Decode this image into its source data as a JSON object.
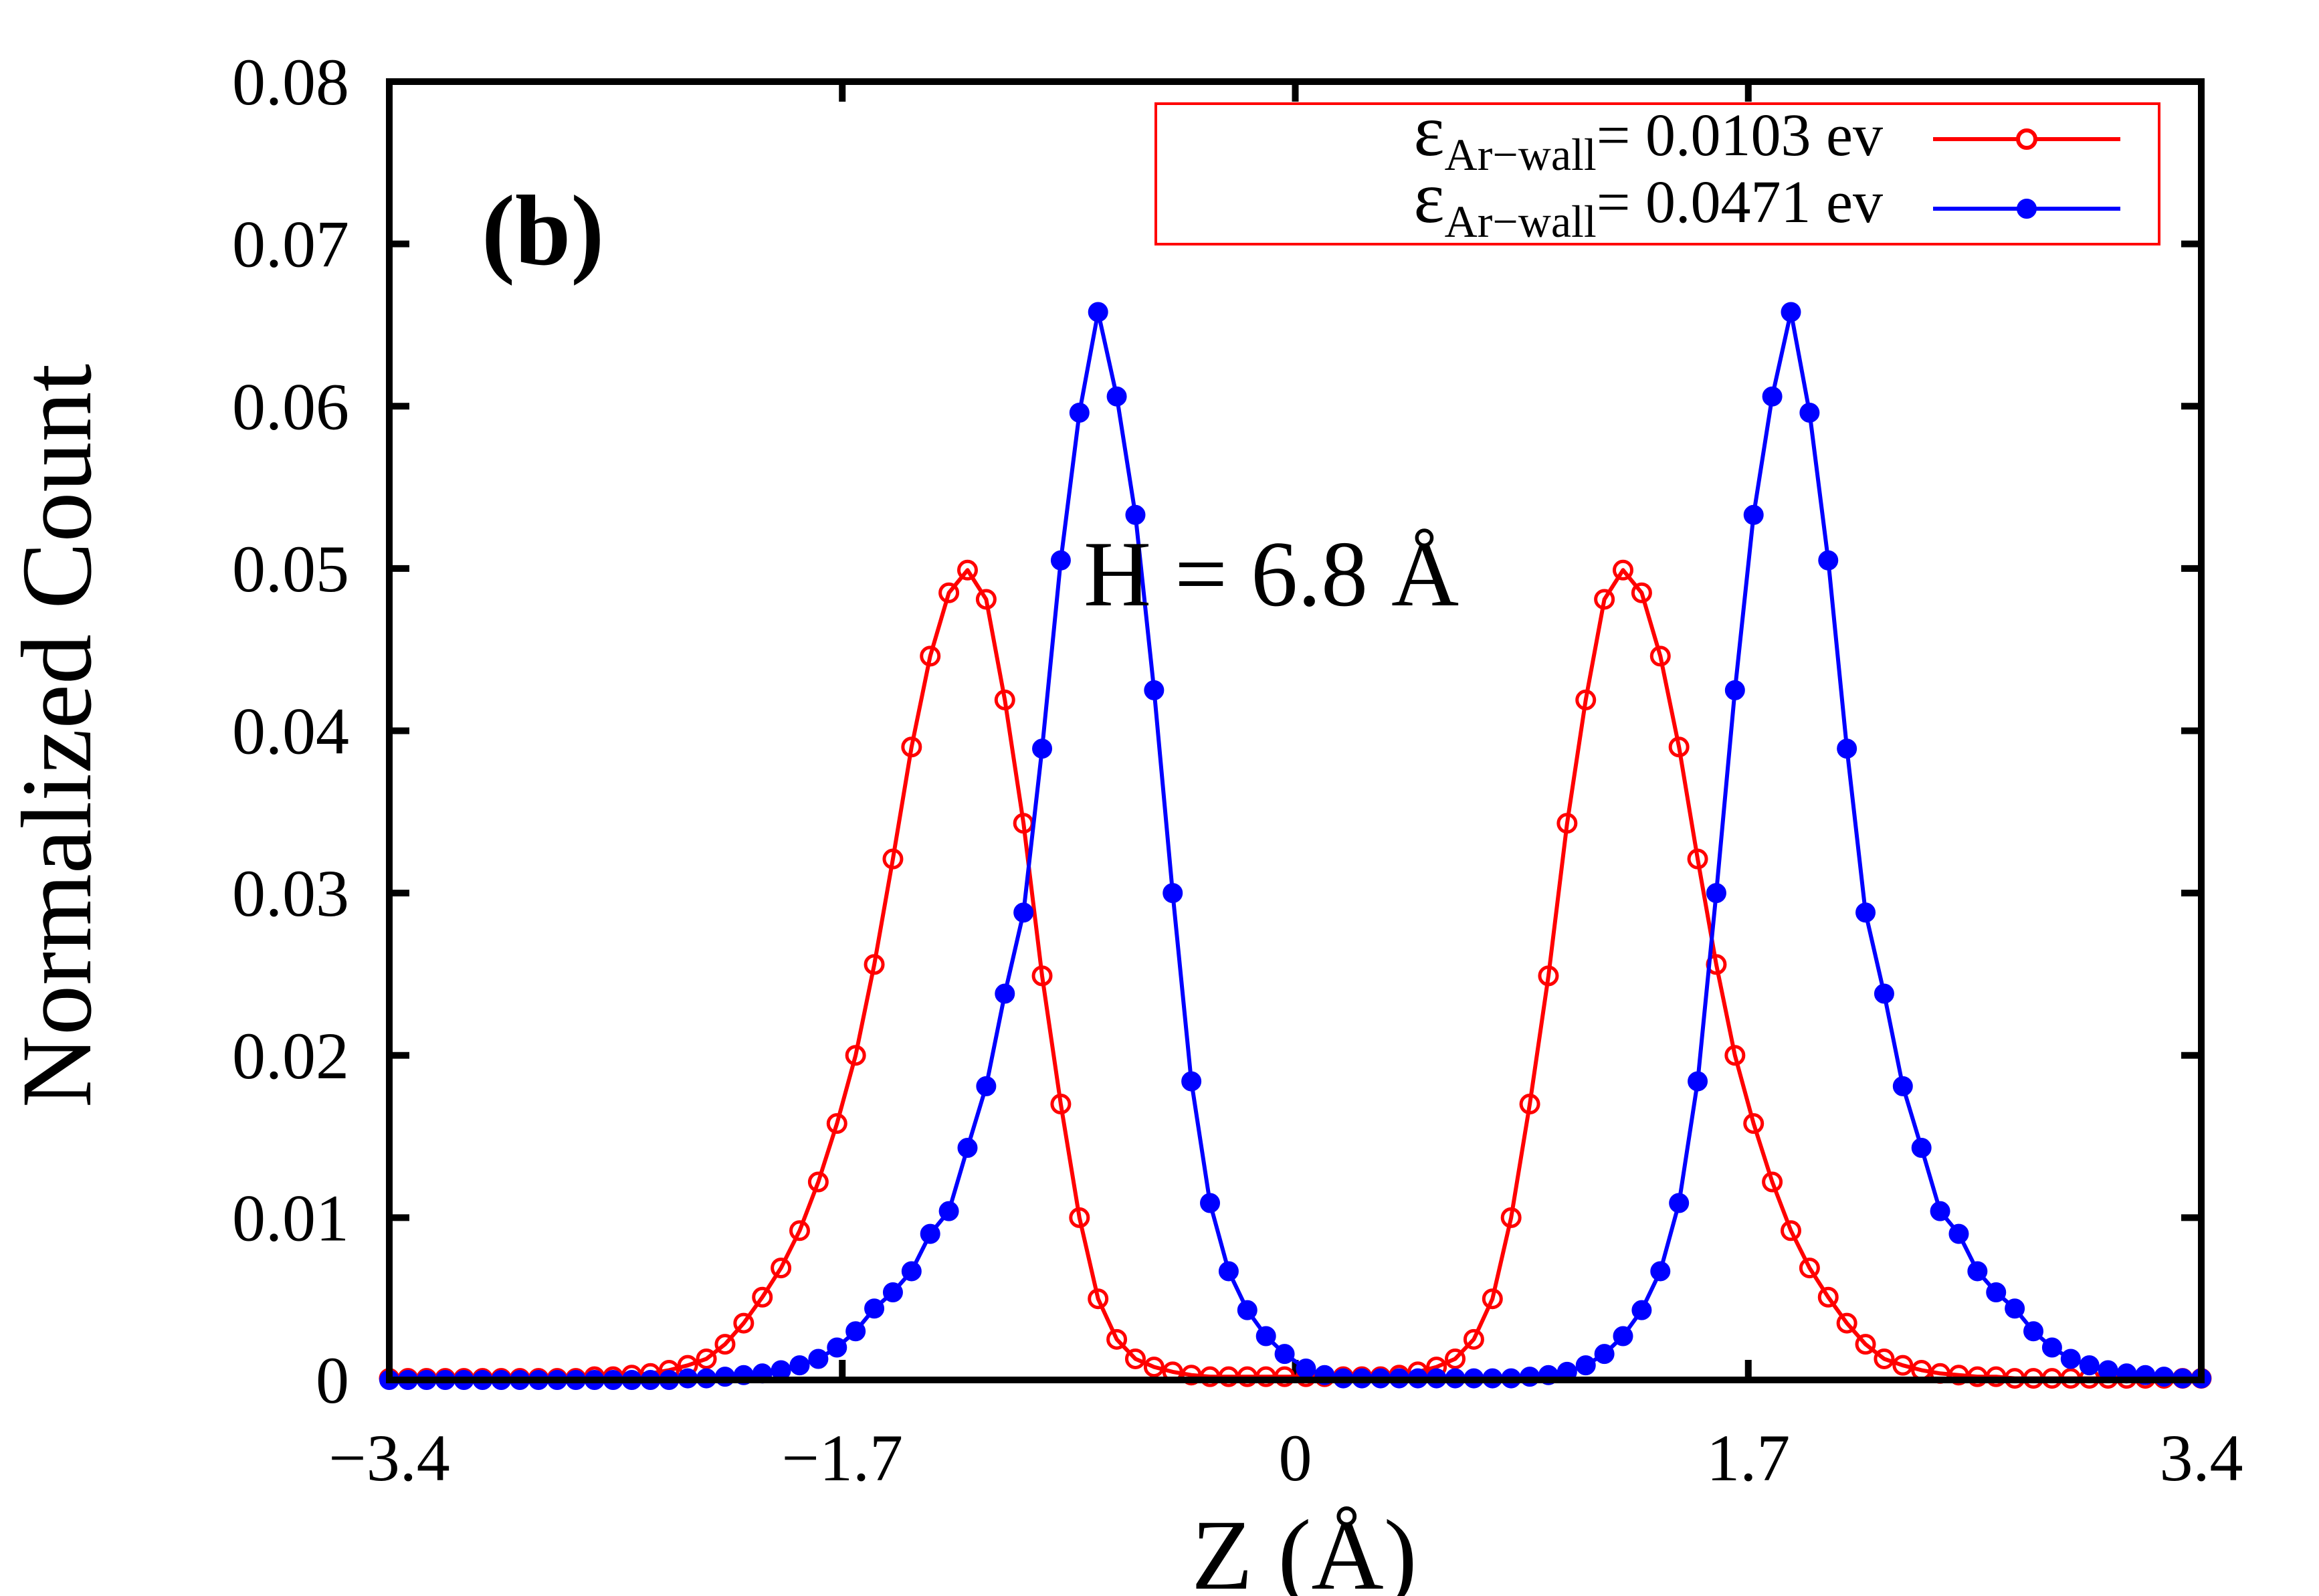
{
  "colors": {
    "series_1": "#ff0000",
    "series_2": "#0000ff",
    "axis": "#000000",
    "legend_border": "#ff0000"
  },
  "chart_data": {
    "type": "line",
    "panel_label": "(b)",
    "annotation": "H = 6.8 Å",
    "xlabel": "Z (Å)",
    "ylabel": "Normalized Count",
    "xlim": [
      -3.4,
      3.4
    ],
    "ylim": [
      0,
      0.08
    ],
    "xticks": [
      -3.4,
      -1.7,
      0,
      1.7,
      3.4
    ],
    "xtick_labels": [
      "−3.4",
      "−1.7",
      "0",
      "1.7",
      "3.4"
    ],
    "yticks": [
      0,
      0.01,
      0.02,
      0.03,
      0.04,
      0.05,
      0.06,
      0.07,
      0.08
    ],
    "ytick_labels": [
      "0",
      "0.01",
      "0.02",
      "0.03",
      "0.04",
      "0.05",
      "0.06",
      "0.07",
      "0.08"
    ],
    "grid": false,
    "legend_position": "top-right",
    "series": [
      {
        "name": "ε_Ar−wall = 0.0103 ev",
        "legend_symbol": "ε",
        "legend_subscript": "Ar−wall",
        "legend_value": "= 0.0103 ev",
        "marker": "open-circle",
        "x": [
          -3.4,
          -3.33,
          -3.26,
          -3.19,
          -3.12,
          -3.05,
          -2.98,
          -2.91,
          -2.84,
          -2.77,
          -2.7,
          -2.63,
          -2.56,
          -2.49,
          -2.42,
          -2.35,
          -2.28,
          -2.21,
          -2.14,
          -2.07,
          -2.0,
          -1.93,
          -1.86,
          -1.79,
          -1.72,
          -1.65,
          -1.58,
          -1.51,
          -1.44,
          -1.37,
          -1.3,
          -1.23,
          -1.16,
          -1.09,
          -1.02,
          -0.95,
          -0.88,
          -0.81,
          -0.74,
          -0.67,
          -0.6,
          -0.53,
          -0.46,
          -0.39,
          -0.32,
          -0.25,
          -0.18,
          -0.11,
          -0.04,
          0.04,
          0.11,
          0.18,
          0.25,
          0.32,
          0.39,
          0.46,
          0.53,
          0.6,
          0.67,
          0.74,
          0.81,
          0.88,
          0.95,
          1.02,
          1.09,
          1.16,
          1.23,
          1.3,
          1.37,
          1.44,
          1.51,
          1.58,
          1.65,
          1.72,
          1.79,
          1.86,
          1.93,
          2.0,
          2.07,
          2.14,
          2.21,
          2.28,
          2.35,
          2.42,
          2.49,
          2.56,
          2.63,
          2.7,
          2.77,
          2.84,
          2.91,
          2.98,
          3.05,
          3.12,
          3.19,
          3.26,
          3.33,
          3.4
        ],
        "values": [
          0.0001,
          0.0001,
          0.0001,
          0.0001,
          0.0001,
          0.0001,
          0.0001,
          0.0001,
          0.0001,
          0.0001,
          0.0001,
          0.0002,
          0.0002,
          0.0003,
          0.0004,
          0.0006,
          0.0009,
          0.0013,
          0.0022,
          0.0035,
          0.0051,
          0.0069,
          0.0092,
          0.0122,
          0.0158,
          0.02,
          0.0256,
          0.0321,
          0.039,
          0.0446,
          0.0485,
          0.0499,
          0.0481,
          0.0419,
          0.0343,
          0.0249,
          0.017,
          0.01,
          0.005,
          0.0025,
          0.0013,
          0.0008,
          0.0005,
          0.0003,
          0.0002,
          0.0002,
          0.0002,
          0.0002,
          0.0002,
          0.0002,
          0.0002,
          0.0002,
          0.0002,
          0.0002,
          0.0003,
          0.0005,
          0.0008,
          0.0013,
          0.0025,
          0.005,
          0.01,
          0.017,
          0.0249,
          0.0343,
          0.0419,
          0.0481,
          0.0499,
          0.0485,
          0.0446,
          0.039,
          0.0321,
          0.0256,
          0.02,
          0.0158,
          0.0122,
          0.0092,
          0.0069,
          0.0051,
          0.0035,
          0.0022,
          0.0013,
          0.0009,
          0.0006,
          0.0004,
          0.0003,
          0.0002,
          0.0002,
          0.0001,
          0.0001,
          0.0001,
          0.0001,
          0.0001,
          0.0001,
          0.0001,
          0.0001,
          0.0001,
          0.0001,
          0.0001
        ]
      },
      {
        "name": "ε_Ar−wall = 0.0471 ev",
        "legend_symbol": "ε",
        "legend_subscript": "Ar−wall",
        "legend_value": "= 0.0471 ev",
        "marker": "filled-circle",
        "x": [
          -3.4,
          -3.33,
          -3.26,
          -3.19,
          -3.12,
          -3.05,
          -2.98,
          -2.91,
          -2.84,
          -2.77,
          -2.7,
          -2.63,
          -2.56,
          -2.49,
          -2.42,
          -2.35,
          -2.28,
          -2.21,
          -2.14,
          -2.07,
          -2.0,
          -1.93,
          -1.86,
          -1.79,
          -1.72,
          -1.65,
          -1.58,
          -1.51,
          -1.44,
          -1.37,
          -1.3,
          -1.23,
          -1.16,
          -1.09,
          -1.02,
          -0.95,
          -0.88,
          -0.81,
          -0.74,
          -0.67,
          -0.6,
          -0.53,
          -0.46,
          -0.39,
          -0.32,
          -0.25,
          -0.18,
          -0.11,
          -0.04,
          0.04,
          0.11,
          0.18,
          0.25,
          0.32,
          0.39,
          0.46,
          0.53,
          0.6,
          0.67,
          0.74,
          0.81,
          0.88,
          0.95,
          1.02,
          1.09,
          1.16,
          1.23,
          1.3,
          1.37,
          1.44,
          1.51,
          1.58,
          1.65,
          1.72,
          1.79,
          1.86,
          1.93,
          2.0,
          2.07,
          2.14,
          2.21,
          2.28,
          2.35,
          2.42,
          2.49,
          2.56,
          2.63,
          2.7,
          2.77,
          2.84,
          2.91,
          2.98,
          3.05,
          3.12,
          3.19,
          3.26,
          3.33,
          3.4
        ],
        "values": [
          0.0,
          0.0,
          0.0,
          0.0,
          0.0,
          0.0,
          0.0,
          0.0,
          0.0,
          0.0,
          0.0,
          0.0,
          0.0,
          0.0,
          0.0,
          0.0,
          0.0001,
          0.0001,
          0.0002,
          0.0003,
          0.0004,
          0.0006,
          0.0009,
          0.0013,
          0.002,
          0.003,
          0.0044,
          0.0054,
          0.0067,
          0.009,
          0.0104,
          0.0143,
          0.0181,
          0.0238,
          0.0288,
          0.0389,
          0.0505,
          0.0596,
          0.0658,
          0.0606,
          0.0533,
          0.0425,
          0.03,
          0.0184,
          0.0109,
          0.0067,
          0.0043,
          0.0027,
          0.0016,
          0.0007,
          0.0003,
          0.0001,
          0.0001,
          0.0001,
          0.0001,
          0.0001,
          0.0001,
          0.0001,
          0.0001,
          0.0001,
          0.0001,
          0.0002,
          0.0003,
          0.0005,
          0.0009,
          0.0016,
          0.0027,
          0.0043,
          0.0067,
          0.0109,
          0.0184,
          0.03,
          0.0425,
          0.0533,
          0.0606,
          0.0658,
          0.0596,
          0.0505,
          0.0389,
          0.0288,
          0.0238,
          0.0181,
          0.0143,
          0.0104,
          0.009,
          0.0067,
          0.0054,
          0.0044,
          0.003,
          0.002,
          0.0013,
          0.0009,
          0.0006,
          0.0004,
          0.0003,
          0.0002,
          0.0001,
          0.0001
        ]
      }
    ]
  }
}
